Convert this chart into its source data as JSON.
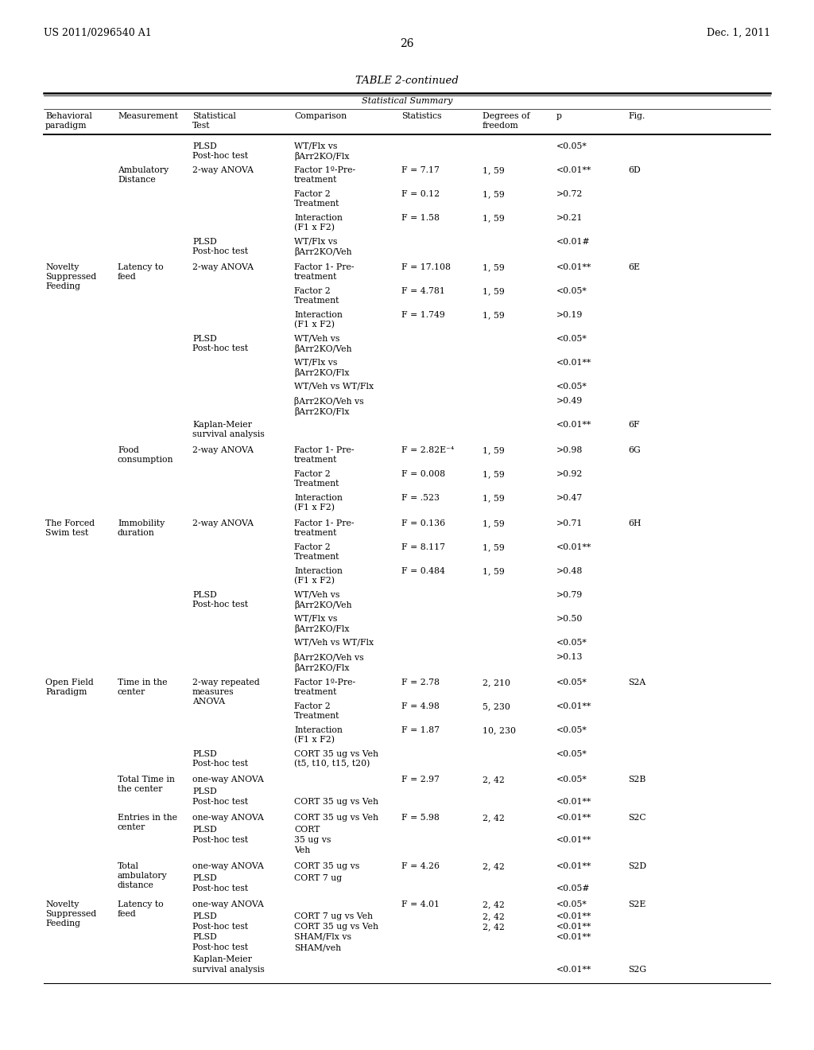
{
  "header_left": "US 2011/0296540 A1",
  "header_right": "Dec. 1, 2011",
  "page_number": "26",
  "table_title": "TABLE 2-continued",
  "section_title": "Statistical Summary"
}
